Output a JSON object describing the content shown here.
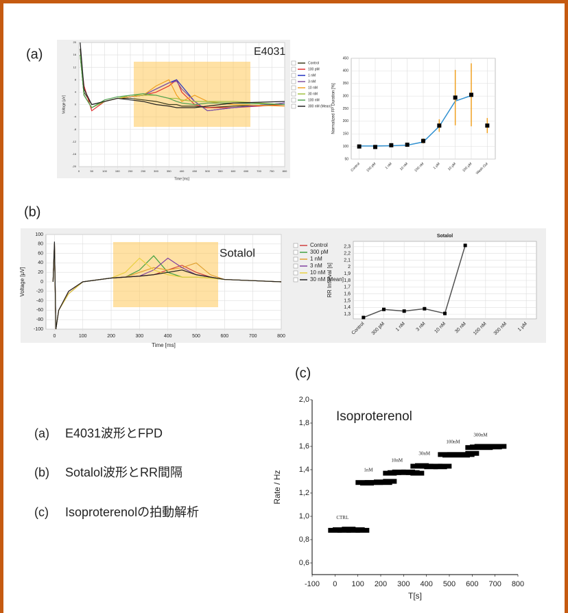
{
  "panel_labels": [
    "(a)",
    "(b)",
    "(c)"
  ],
  "captions": [
    {
      "label": "(a)",
      "text": "E4031波形とFPD"
    },
    {
      "label": "(b)",
      "text": "Sotalol波形とRR間隔"
    },
    {
      "label": "(c)",
      "text": "Isoproterenolの拍動解析"
    }
  ],
  "chart_data": [
    {
      "type": "line",
      "annotation": "E4031",
      "xlabel": "Time [ms]",
      "ylabel": "Voltage [µV]",
      "grid": true,
      "xlim": [
        0,
        800
      ],
      "xticks": [
        0,
        50,
        100,
        150,
        200,
        250,
        300,
        350,
        400,
        450,
        500,
        550,
        600,
        650,
        700,
        750,
        800
      ],
      "ylim": [
        -20,
        20
      ],
      "yticks": [
        -20,
        -16,
        -12,
        -8,
        -4,
        0,
        4,
        8,
        12,
        16,
        20
      ],
      "x": [
        5,
        20,
        50,
        100,
        150,
        200,
        250,
        300,
        350,
        380,
        400,
        450,
        500,
        600,
        800
      ],
      "series": [
        {
          "name": "Control",
          "color": "#3a3a1a",
          "values": [
            18,
            4,
            0,
            1,
            2,
            2,
            1.5,
            1,
            0,
            0,
            -0.5,
            -0.5,
            -1,
            -0.5,
            0
          ]
        },
        {
          "name": "100 pM",
          "color": "#e03030",
          "values": [
            16,
            6,
            -2,
            1,
            2,
            2.5,
            3,
            4,
            6,
            8,
            4,
            0,
            -1,
            -1,
            0
          ]
        },
        {
          "name": "1 nM",
          "color": "#2030c0",
          "values": [
            16,
            3,
            -1,
            1,
            2,
            2.5,
            3,
            5,
            7,
            8,
            6,
            1,
            -2,
            -1,
            0.5
          ]
        },
        {
          "name": "3 nM",
          "color": "#8050a0",
          "values": [
            16,
            3,
            -1,
            1,
            2,
            2.5,
            3,
            5,
            7,
            7.5,
            5,
            1,
            -2,
            -1,
            0.5
          ]
        },
        {
          "name": "10 nM",
          "color": "#f0a020",
          "values": [
            16,
            3,
            -1,
            1,
            2,
            2.5,
            3,
            6,
            8,
            3,
            1,
            3,
            1,
            0,
            -0.5
          ]
        },
        {
          "name": "30 nM",
          "color": "#a0c040",
          "values": [
            16,
            3,
            -1,
            1,
            2,
            3,
            3,
            3,
            2,
            2,
            1.5,
            1,
            1,
            1,
            0
          ]
        },
        {
          "name": "100 nM",
          "color": "#50a050",
          "values": [
            16,
            3,
            -1,
            1.5,
            2.5,
            3,
            3.5,
            3,
            2,
            1,
            0.5,
            0,
            0.5,
            0.5,
            0
          ]
        },
        {
          "name": "300 nM (Mean)",
          "color": "#202020",
          "values": [
            20,
            5,
            0,
            1,
            2,
            1.5,
            1,
            0,
            -0.5,
            -1,
            -1,
            -1,
            -0.5,
            0.5,
            1
          ]
        }
      ]
    },
    {
      "type": "errorbar",
      "ylabel": "Normalized FP Duration [%]",
      "grid": true,
      "ylim": [
        50,
        450
      ],
      "yticks": [
        50,
        100,
        150,
        200,
        250,
        300,
        350,
        400,
        450
      ],
      "categories": [
        "Control",
        "100 pM",
        "1 nM",
        "10 nM",
        "100 nM",
        "1 µM",
        "10 µM",
        "100 µM",
        "Wash Out"
      ],
      "color": "#000000",
      "values": [
        100,
        98,
        105,
        107,
        122,
        183,
        294,
        305,
        183
      ],
      "errors": [
        5,
        4,
        6,
        6,
        10,
        25,
        110,
        125,
        30
      ],
      "error_color": "#f0a020",
      "fit": {
        "color": "#3090d0",
        "values": [
          102,
          102,
          103,
          105,
          118,
          180,
          280,
          302,
          null
        ]
      }
    },
    {
      "type": "line",
      "annotation": "Sotalol",
      "xlabel": "Time [ms]",
      "ylabel": "Voltage [µV]",
      "grid": true,
      "xlim": [
        -30,
        800
      ],
      "xticks": [
        0,
        100,
        200,
        300,
        400,
        500,
        600,
        700,
        800
      ],
      "ylim": [
        -100,
        100
      ],
      "yticks": [
        -100,
        -80,
        -60,
        -40,
        -20,
        0,
        20,
        40,
        60,
        80,
        100
      ],
      "x": [
        -5,
        0,
        5,
        15,
        50,
        100,
        200,
        250,
        300,
        350,
        400,
        450,
        500,
        550,
        600,
        800
      ],
      "series": [
        {
          "name": "Control",
          "color": "#d04040",
          "values": [
            0,
            80,
            -100,
            -60,
            -20,
            0,
            8,
            10,
            12,
            15,
            25,
            35,
            20,
            10,
            5,
            0
          ]
        },
        {
          "name": "300 pM",
          "color": "#40a040",
          "values": [
            0,
            80,
            -100,
            -60,
            -25,
            0,
            8,
            10,
            25,
            55,
            20,
            10,
            10,
            8,
            5,
            0
          ]
        },
        {
          "name": "1 nM",
          "color": "#e0a030",
          "values": [
            0,
            80,
            -100,
            -60,
            -25,
            0,
            8,
            10,
            20,
            30,
            25,
            30,
            40,
            15,
            5,
            0
          ]
        },
        {
          "name": "3 nM",
          "color": "#8040a0",
          "values": [
            0,
            80,
            -100,
            -60,
            -25,
            0,
            8,
            10,
            12,
            25,
            50,
            30,
            15,
            10,
            5,
            0
          ]
        },
        {
          "name": "10 nM",
          "color": "#e8d040",
          "values": [
            0,
            80,
            -100,
            -60,
            -25,
            0,
            8,
            20,
            50,
            25,
            15,
            10,
            10,
            8,
            5,
            0
          ]
        },
        {
          "name": "30 nM [Mean]",
          "color": "#202020",
          "values": [
            0,
            85,
            -100,
            -60,
            -20,
            0,
            8,
            10,
            12,
            15,
            20,
            25,
            15,
            10,
            5,
            0
          ]
        }
      ]
    },
    {
      "type": "line",
      "title": "Sotalol",
      "ylabel": "RR Interval [s]",
      "grid": true,
      "ylim": [
        1.23,
        2.38
      ],
      "yticks": [
        {
          "value": 1.3,
          "label": "1,3"
        },
        {
          "value": 1.4,
          "label": "1,4"
        },
        {
          "value": 1.5,
          "label": "1,5"
        },
        {
          "value": 1.6,
          "label": "1,6"
        },
        {
          "value": 1.7,
          "label": "1,7"
        },
        {
          "value": 1.8,
          "label": "1,8"
        },
        {
          "value": 1.9,
          "label": "1,9"
        },
        {
          "value": 2,
          "label": "2"
        },
        {
          "value": 2.1,
          "label": "2,1"
        },
        {
          "value": 2.2,
          "label": "2,2"
        },
        {
          "value": 2.3,
          "label": "2,3"
        }
      ],
      "categories": [
        "Control",
        "300 pM",
        "1 nM",
        "3 nM",
        "10 nM",
        "30 nM",
        "100 nM",
        "300 nM",
        "1 µM"
      ],
      "series": [
        {
          "color": "#505050",
          "values": [
            1.25,
            1.37,
            1.345,
            1.38,
            1.31,
            2.32,
            null,
            null,
            null
          ]
        }
      ]
    },
    {
      "type": "scatter",
      "annotation": "Isoproterenol",
      "xlabel": "T[s]",
      "ylabel": "Rate / Hz",
      "grid": false,
      "xlim": [
        -100,
        800
      ],
      "xticks": [
        -100,
        0,
        100,
        200,
        300,
        400,
        500,
        600,
        700,
        800
      ],
      "ylim": [
        0.5,
        2.0
      ],
      "yticks": [
        {
          "value": 0.6,
          "label": "0,6"
        },
        {
          "value": 0.8,
          "label": "0,8"
        },
        {
          "value": 1.0,
          "label": "1,0"
        },
        {
          "value": 1.2,
          "label": "1,2"
        },
        {
          "value": 1.4,
          "label": "1,4"
        },
        {
          "value": 1.6,
          "label": "1,6"
        },
        {
          "value": 1.8,
          "label": "1,8"
        },
        {
          "value": 2.0,
          "label": "2,0"
        }
      ],
      "series": [
        {
          "name": "CTRL",
          "color": "#000000",
          "x": [
            0,
            20,
            40,
            60,
            80,
            100,
            120
          ],
          "values": [
            0.88,
            0.885,
            0.88,
            0.89,
            0.88,
            0.885,
            0.88
          ]
        },
        {
          "name": "1nM",
          "color": "#000000",
          "x": [
            120,
            140,
            160,
            180,
            200,
            220,
            240
          ],
          "values": [
            1.29,
            1.285,
            1.29,
            1.29,
            1.295,
            1.29,
            1.3
          ]
        },
        {
          "name": "10nM",
          "color": "#000000",
          "x": [
            240,
            260,
            280,
            300,
            320,
            340,
            360
          ],
          "values": [
            1.37,
            1.375,
            1.38,
            1.375,
            1.38,
            1.375,
            1.37
          ]
        },
        {
          "name": "30nM",
          "color": "#000000",
          "x": [
            360,
            380,
            400,
            420,
            440,
            460,
            480
          ],
          "values": [
            1.43,
            1.435,
            1.43,
            1.425,
            1.43,
            1.425,
            1.43
          ]
        },
        {
          "name": "100nM",
          "color": "#000000",
          "x": [
            480,
            500,
            520,
            540,
            560,
            580,
            600
          ],
          "values": [
            1.53,
            1.525,
            1.53,
            1.53,
            1.525,
            1.53,
            1.54
          ]
        },
        {
          "name": "300nM",
          "color": "#000000",
          "x": [
            600,
            620,
            640,
            660,
            680,
            700,
            720
          ],
          "values": [
            1.59,
            1.595,
            1.6,
            1.59,
            1.6,
            1.595,
            1.6
          ]
        }
      ]
    }
  ]
}
